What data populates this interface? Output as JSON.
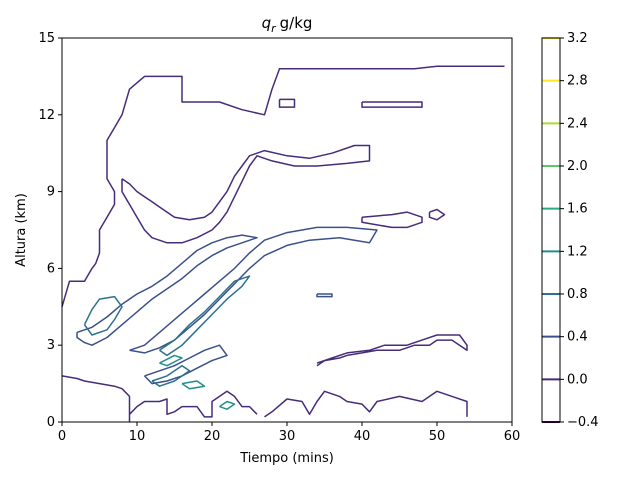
{
  "chart_data": {
    "type": "contour",
    "title_symbol": "q",
    "title_subscript": "r",
    "title_unit": "g/kg",
    "xlabel": "Tiempo (mins)",
    "ylabel": "Altura (km)",
    "xlim": [
      0,
      60
    ],
    "ylim": [
      0,
      15
    ],
    "xticks": [
      0,
      10,
      20,
      30,
      40,
      50,
      60
    ],
    "yticks": [
      0,
      3,
      6,
      9,
      12,
      15
    ],
    "grid": false,
    "colorbar": {
      "ticks": [
        -0.4,
        0.0,
        0.4,
        0.8,
        1.2,
        1.6,
        2.0,
        2.4,
        2.8,
        3.2
      ],
      "tick_labels": [
        "−0.4",
        "0.0",
        "0.4",
        "0.8",
        "1.2",
        "1.6",
        "2.0",
        "2.4",
        "2.8",
        "3.2"
      ],
      "level_colors": [
        "#440154",
        "#472c7a",
        "#3b518b",
        "#2c718e",
        "#21908d",
        "#27ad81",
        "#5cc863",
        "#aadc32",
        "#fde725"
      ]
    },
    "contours": [
      {
        "level": 0.0,
        "color": "#472c7a",
        "points": [
          [
            0,
            4.5
          ],
          [
            1,
            5.5
          ],
          [
            3,
            5.5
          ],
          [
            4,
            6
          ],
          [
            4.5,
            6.2
          ],
          [
            5,
            6.6
          ],
          [
            5,
            7.5
          ],
          [
            6,
            8
          ],
          [
            7,
            8.5
          ],
          [
            7,
            9
          ],
          [
            6,
            9.5
          ],
          [
            6,
            11
          ],
          [
            7,
            11.5
          ],
          [
            8,
            12
          ],
          [
            9,
            13
          ],
          [
            11,
            13.5
          ],
          [
            16,
            13.5
          ],
          [
            16,
            12.5
          ],
          [
            21,
            12.5
          ],
          [
            24,
            12.2
          ],
          [
            27,
            12
          ],
          [
            28,
            13
          ],
          [
            29,
            13.8
          ],
          [
            47,
            13.8
          ],
          [
            50,
            13.9
          ],
          [
            59,
            13.9
          ]
        ]
      },
      {
        "level": 0.0,
        "color": "#472c7a",
        "points": [
          [
            0,
            1.8
          ],
          [
            2,
            1.7
          ],
          [
            3,
            1.6
          ],
          [
            5,
            1.5
          ],
          [
            7,
            1.4
          ],
          [
            8,
            1.3
          ],
          [
            9,
            1.0
          ],
          [
            9,
            0
          ]
        ]
      },
      {
        "level": 0.0,
        "color": "#472c7a",
        "points": [
          [
            9,
            0.3
          ],
          [
            10,
            0.6
          ],
          [
            11,
            0.8
          ],
          [
            12,
            0.8
          ],
          [
            13,
            0.8
          ],
          [
            14,
            0.9
          ],
          [
            14,
            0.3
          ],
          [
            15,
            0.4
          ],
          [
            16,
            0.6
          ],
          [
            18,
            0.6
          ],
          [
            19,
            0.2
          ],
          [
            20,
            0.2
          ],
          [
            20,
            0.8
          ],
          [
            21,
            1.0
          ],
          [
            22,
            1.2
          ],
          [
            23,
            1.0
          ],
          [
            24,
            0.6
          ],
          [
            25,
            0.6
          ],
          [
            26,
            0.3
          ]
        ]
      },
      {
        "level": 0.0,
        "color": "#472c7a",
        "points": [
          [
            27,
            0.2
          ],
          [
            28,
            0.4
          ],
          [
            30,
            0.9
          ],
          [
            32,
            0.8
          ],
          [
            33,
            0.3
          ],
          [
            34,
            0.8
          ],
          [
            35,
            1.2
          ],
          [
            37,
            1.0
          ],
          [
            38,
            0.8
          ],
          [
            40,
            0.7
          ],
          [
            41,
            0.4
          ],
          [
            42,
            0.8
          ],
          [
            45,
            1.0
          ],
          [
            48,
            0.8
          ],
          [
            50,
            1.2
          ],
          [
            52,
            1.0
          ],
          [
            54,
            0.8
          ],
          [
            54,
            0.2
          ]
        ]
      },
      {
        "level": 0.0,
        "color": "#472c7a",
        "points": [
          [
            34,
            2.2
          ],
          [
            35,
            2.4
          ],
          [
            37,
            2.5
          ],
          [
            38,
            2.6
          ],
          [
            40,
            2.7
          ],
          [
            42,
            2.8
          ],
          [
            43,
            2.8
          ],
          [
            45,
            2.8
          ],
          [
            47,
            3.0
          ],
          [
            49,
            3.0
          ],
          [
            50,
            3.2
          ],
          [
            52,
            3.2
          ],
          [
            53,
            3.0
          ],
          [
            54,
            2.8
          ],
          [
            54,
            3.0
          ],
          [
            53,
            3.4
          ],
          [
            50,
            3.4
          ],
          [
            48,
            3.2
          ],
          [
            46,
            3.0
          ],
          [
            43,
            3.0
          ],
          [
            41,
            2.8
          ],
          [
            38,
            2.7
          ],
          [
            36,
            2.5
          ],
          [
            34,
            2.3
          ]
        ]
      },
      {
        "level": 0.0,
        "color": "#472c7a",
        "points": [
          [
            8,
            9.5
          ],
          [
            9,
            9.3
          ],
          [
            10,
            9.0
          ],
          [
            11,
            8.8
          ],
          [
            12,
            8.6
          ],
          [
            13,
            8.4
          ],
          [
            14,
            8.2
          ],
          [
            15,
            8.0
          ],
          [
            17,
            7.9
          ],
          [
            19,
            8.0
          ],
          [
            20,
            8.2
          ],
          [
            21,
            8.6
          ],
          [
            22,
            9.0
          ],
          [
            23,
            9.6
          ],
          [
            24,
            10.0
          ],
          [
            25,
            10.4
          ],
          [
            27,
            10.6
          ],
          [
            30,
            10.4
          ],
          [
            33,
            10.3
          ],
          [
            36,
            10.5
          ],
          [
            39,
            10.8
          ],
          [
            41,
            10.8
          ],
          [
            41,
            10.2
          ],
          [
            38,
            10.1
          ],
          [
            34,
            10.0
          ],
          [
            31,
            10.0
          ],
          [
            28,
            10.2
          ],
          [
            26,
            10.4
          ],
          [
            25,
            10.0
          ],
          [
            24,
            9.4
          ],
          [
            23,
            8.8
          ],
          [
            22,
            8.2
          ],
          [
            21,
            7.8
          ],
          [
            20,
            7.5
          ],
          [
            18,
            7.2
          ],
          [
            16,
            7.0
          ],
          [
            14,
            7.0
          ],
          [
            12,
            7.2
          ],
          [
            11,
            7.5
          ],
          [
            10,
            8.0
          ],
          [
            9,
            8.5
          ],
          [
            8,
            9.0
          ],
          [
            8,
            9.5
          ]
        ]
      },
      {
        "level": 0.0,
        "color": "#472c7a",
        "points": [
          [
            40,
            8.0
          ],
          [
            44,
            8.1
          ],
          [
            46,
            8.2
          ],
          [
            48,
            8.0
          ],
          [
            48,
            7.8
          ],
          [
            46,
            7.6
          ],
          [
            44,
            7.6
          ],
          [
            42,
            7.7
          ],
          [
            40,
            7.8
          ],
          [
            40,
            8.0
          ]
        ]
      },
      {
        "level": 0.0,
        "color": "#472c7a",
        "points": [
          [
            49,
            8.2
          ],
          [
            50,
            8.3
          ],
          [
            51,
            8.1
          ],
          [
            50,
            7.9
          ],
          [
            49,
            8.0
          ],
          [
            49,
            8.2
          ]
        ]
      },
      {
        "level": 0.0,
        "color": "#472c7a",
        "points": [
          [
            40,
            12.5
          ],
          [
            48,
            12.5
          ],
          [
            48,
            12.3
          ],
          [
            40,
            12.3
          ],
          [
            40,
            12.5
          ]
        ]
      },
      {
        "level": 0.0,
        "color": "#472c7a",
        "points": [
          [
            29,
            12.6
          ],
          [
            31,
            12.6
          ],
          [
            31,
            12.3
          ],
          [
            29,
            12.3
          ],
          [
            29,
            12.6
          ]
        ]
      },
      {
        "level": 0.4,
        "color": "#3b518b",
        "points": [
          [
            2,
            3.5
          ],
          [
            4,
            3.7
          ],
          [
            6,
            4.1
          ],
          [
            8,
            4.6
          ],
          [
            10,
            5.0
          ],
          [
            12,
            5.3
          ],
          [
            14,
            5.7
          ],
          [
            16,
            6.2
          ],
          [
            18,
            6.7
          ],
          [
            20,
            7.0
          ],
          [
            22,
            7.2
          ],
          [
            24,
            7.3
          ],
          [
            26,
            7.2
          ],
          [
            24,
            7.0
          ],
          [
            22,
            6.8
          ],
          [
            20,
            6.5
          ],
          [
            18,
            6.1
          ],
          [
            16,
            5.6
          ],
          [
            14,
            5.2
          ],
          [
            12,
            4.8
          ],
          [
            10,
            4.3
          ],
          [
            8,
            3.8
          ],
          [
            6,
            3.3
          ],
          [
            4,
            3.0
          ],
          [
            3,
            3.1
          ],
          [
            2,
            3.3
          ],
          [
            2,
            3.5
          ]
        ]
      },
      {
        "level": 0.4,
        "color": "#3b518b",
        "points": [
          [
            9,
            2.8
          ],
          [
            11,
            3.0
          ],
          [
            13,
            3.5
          ],
          [
            15,
            4.0
          ],
          [
            17,
            4.5
          ],
          [
            19,
            5.0
          ],
          [
            21,
            5.5
          ],
          [
            23,
            6.0
          ],
          [
            25,
            6.6
          ],
          [
            27,
            7.1
          ],
          [
            30,
            7.4
          ],
          [
            34,
            7.6
          ],
          [
            38,
            7.6
          ],
          [
            42,
            7.5
          ],
          [
            41,
            7.0
          ],
          [
            37,
            7.2
          ],
          [
            33,
            7.1
          ],
          [
            30,
            6.9
          ],
          [
            27,
            6.5
          ],
          [
            25,
            6.0
          ],
          [
            23,
            5.4
          ],
          [
            21,
            4.8
          ],
          [
            19,
            4.2
          ],
          [
            17,
            3.7
          ],
          [
            15,
            3.2
          ],
          [
            13,
            2.9
          ],
          [
            11,
            2.7
          ],
          [
            9,
            2.8
          ]
        ]
      },
      {
        "level": 0.4,
        "color": "#3b518b",
        "points": [
          [
            11,
            1.8
          ],
          [
            13,
            2.0
          ],
          [
            15,
            2.2
          ],
          [
            17,
            2.5
          ],
          [
            19,
            2.8
          ],
          [
            21,
            3.0
          ],
          [
            22,
            2.6
          ],
          [
            20,
            2.4
          ],
          [
            18,
            2.1
          ],
          [
            16,
            1.8
          ],
          [
            14,
            1.6
          ],
          [
            12,
            1.5
          ],
          [
            11,
            1.8
          ]
        ]
      },
      {
        "level": 0.4,
        "color": "#3b518b",
        "points": [
          [
            34,
            5.0
          ],
          [
            36,
            5.0
          ],
          [
            36,
            4.9
          ],
          [
            34,
            4.9
          ],
          [
            34,
            5.0
          ]
        ]
      },
      {
        "level": 0.8,
        "color": "#2c718e",
        "points": [
          [
            3,
            3.8
          ],
          [
            4,
            4.4
          ],
          [
            5,
            4.8
          ],
          [
            7,
            4.9
          ],
          [
            8,
            4.5
          ],
          [
            7,
            4.0
          ],
          [
            6,
            3.6
          ],
          [
            4,
            3.4
          ],
          [
            3,
            3.8
          ]
        ]
      },
      {
        "level": 0.8,
        "color": "#2c718e",
        "points": [
          [
            13,
            2.8
          ],
          [
            15,
            3.2
          ],
          [
            17,
            3.8
          ],
          [
            19,
            4.3
          ],
          [
            21,
            4.9
          ],
          [
            23,
            5.5
          ],
          [
            25,
            5.7
          ],
          [
            24,
            5.3
          ],
          [
            22,
            4.8
          ],
          [
            20,
            4.2
          ],
          [
            18,
            3.6
          ],
          [
            16,
            3.0
          ],
          [
            14,
            2.6
          ],
          [
            13,
            2.8
          ]
        ]
      },
      {
        "level": 0.8,
        "color": "#2c718e",
        "points": [
          [
            12,
            1.6
          ],
          [
            14,
            1.8
          ],
          [
            16,
            2.2
          ],
          [
            17,
            2.0
          ],
          [
            15,
            1.6
          ],
          [
            13,
            1.4
          ],
          [
            12,
            1.6
          ]
        ]
      },
      {
        "level": 1.2,
        "color": "#21908d",
        "points": [
          [
            16,
            1.5
          ],
          [
            18,
            1.6
          ],
          [
            19,
            1.4
          ],
          [
            17,
            1.3
          ],
          [
            16,
            1.5
          ]
        ]
      },
      {
        "level": 1.2,
        "color": "#21908d",
        "points": [
          [
            21,
            0.6
          ],
          [
            22,
            0.8
          ],
          [
            23,
            0.7
          ],
          [
            22,
            0.5
          ],
          [
            21,
            0.6
          ]
        ]
      },
      {
        "level": 1.2,
        "color": "#21908d",
        "points": [
          [
            13,
            2.3
          ],
          [
            15,
            2.6
          ],
          [
            16,
            2.5
          ],
          [
            14,
            2.2
          ],
          [
            13,
            2.3
          ]
        ]
      }
    ]
  }
}
